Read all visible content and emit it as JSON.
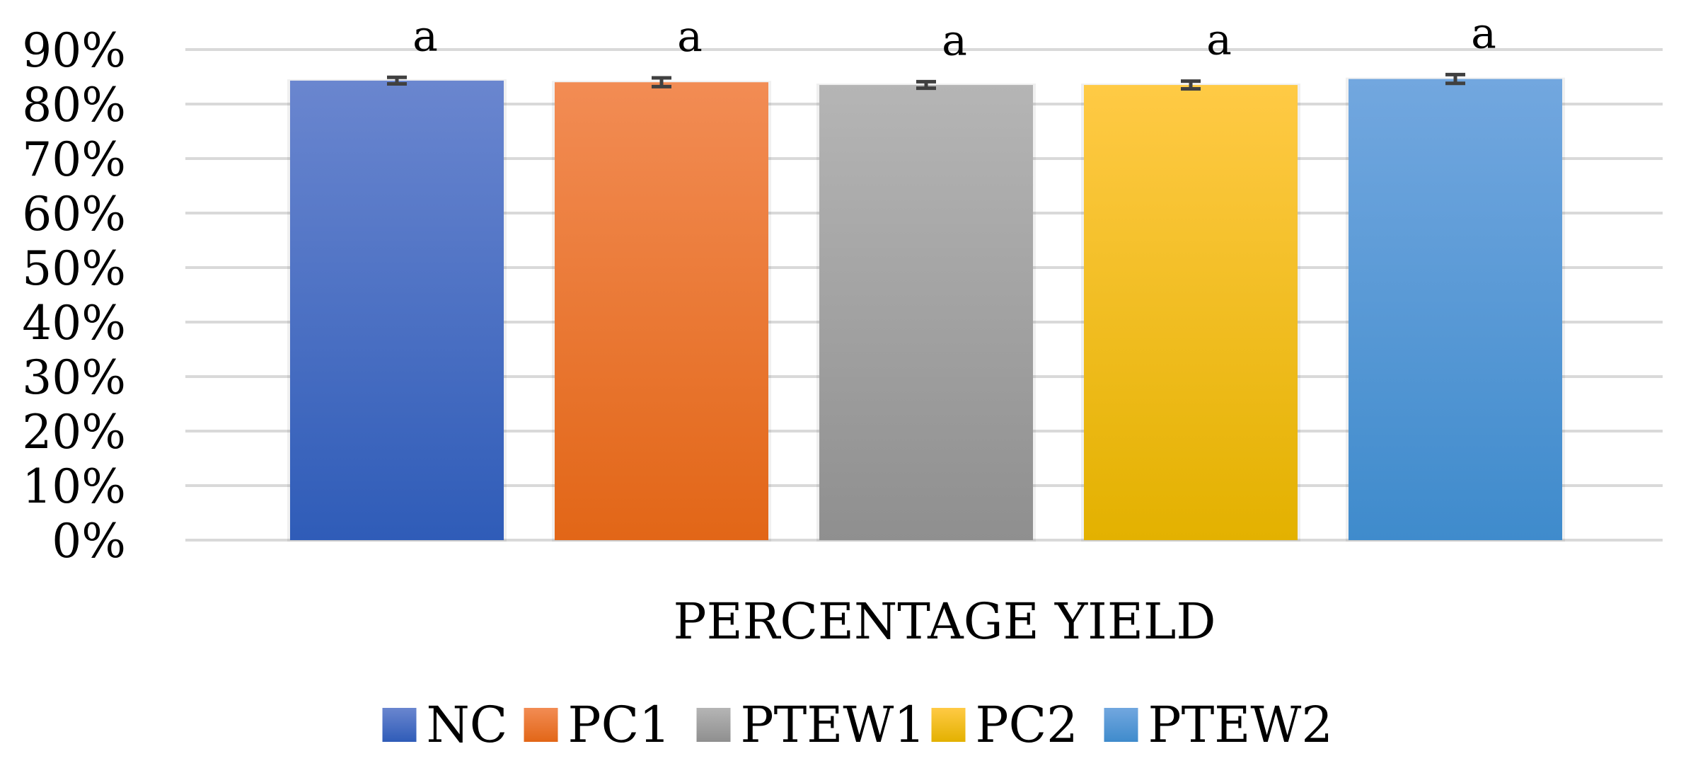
{
  "chart_data": {
    "type": "bar",
    "title": "",
    "xlabel": "PERCENTAGE YIELD",
    "ylabel": "",
    "ylim": [
      0,
      90
    ],
    "yticks": [
      0,
      10,
      20,
      30,
      40,
      50,
      60,
      70,
      80,
      90
    ],
    "ytick_labels": [
      "0%",
      "10%",
      "20%",
      "30%",
      "40%",
      "50%",
      "60%",
      "70%",
      "80%",
      "90%"
    ],
    "grid": true,
    "legend_position": "bottom",
    "series": [
      {
        "name": "NC",
        "value": 84.3,
        "error": 0.6,
        "annotation": "a",
        "color_top": "#6a86cf",
        "color_bottom": "#2f5cb8"
      },
      {
        "name": "PC1",
        "value": 84.0,
        "error": 0.8,
        "annotation": "a",
        "color_top": "#f28c54",
        "color_bottom": "#e26617"
      },
      {
        "name": "PTEW1",
        "value": 83.5,
        "error": 0.6,
        "annotation": "a",
        "color_top": "#b5b5b5",
        "color_bottom": "#8f8f8f"
      },
      {
        "name": "PC2",
        "value": 83.5,
        "error": 0.7,
        "annotation": "a",
        "color_top": "#ffca45",
        "color_bottom": "#e3b100"
      },
      {
        "name": "PTEW2",
        "value": 84.6,
        "error": 0.8,
        "annotation": "a",
        "color_top": "#72a7df",
        "color_bottom": "#3f8bcc"
      }
    ]
  }
}
